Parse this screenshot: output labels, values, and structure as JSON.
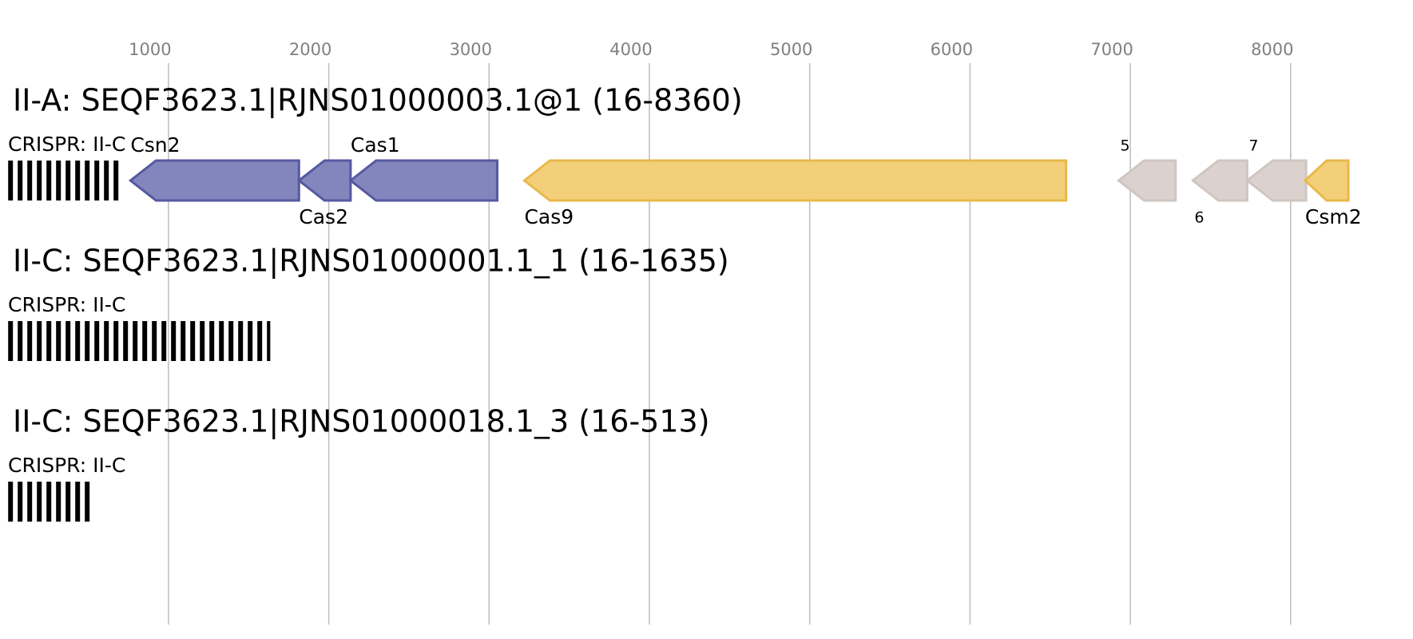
{
  "axis": {
    "ticks": [
      1000,
      2000,
      3000,
      4000,
      5000,
      6000,
      7000,
      8000
    ]
  },
  "tracks": [
    {
      "title": "II-A: SEQF3623.1|RJNS01000003.1@1 (16-8360)",
      "crispr": {
        "label": "CRISPR: II-C",
        "start": 16,
        "end": 695
      },
      "features": [
        {
          "label": "Csn2",
          "start": 763,
          "end": 1814,
          "strand": "-",
          "color": "#7b7fb8",
          "stroke": "#5558a0"
        },
        {
          "label": "Cas2",
          "start": 1814,
          "end": 2136,
          "strand": "-",
          "color": "#7b7fb8",
          "stroke": "#5558a0"
        },
        {
          "label": "Cas1",
          "start": 2136,
          "end": 3051,
          "strand": "-",
          "color": "#7b7fb8",
          "stroke": "#5558a0"
        },
        {
          "label": "Cas9",
          "start": 3220,
          "end": 6599,
          "strand": "-",
          "color": "#f2cc72",
          "stroke": "#e8b94a"
        },
        {
          "label": "5",
          "start": 6927,
          "end": 7282,
          "strand": "-",
          "color": "#d9d0cc",
          "stroke": "#cfc6c0"
        },
        {
          "label": "6",
          "start": 7390,
          "end": 7729,
          "strand": "-",
          "color": "#d9d0cc",
          "stroke": "#cfc6c0"
        },
        {
          "label": "7",
          "start": 7729,
          "end": 8096,
          "strand": "-",
          "color": "#d9d0cc",
          "stroke": "#cfc6c0"
        },
        {
          "label": "Csm2",
          "start": 8090,
          "end": 8360,
          "strand": "-",
          "color": "#f2cc72",
          "stroke": "#e8b94a"
        }
      ]
    },
    {
      "title": "II-C: SEQF3623.1|RJNS01000001.1_1 (16-1635)",
      "crispr": {
        "label": "CRISPR: II-C",
        "start": 16,
        "end": 1635
      },
      "features": []
    },
    {
      "title": "II-C: SEQF3623.1|RJNS01000018.1_3 (16-513)",
      "crispr": {
        "label": "CRISPR: II-C",
        "start": 16,
        "end": 513
      },
      "features": []
    }
  ]
}
